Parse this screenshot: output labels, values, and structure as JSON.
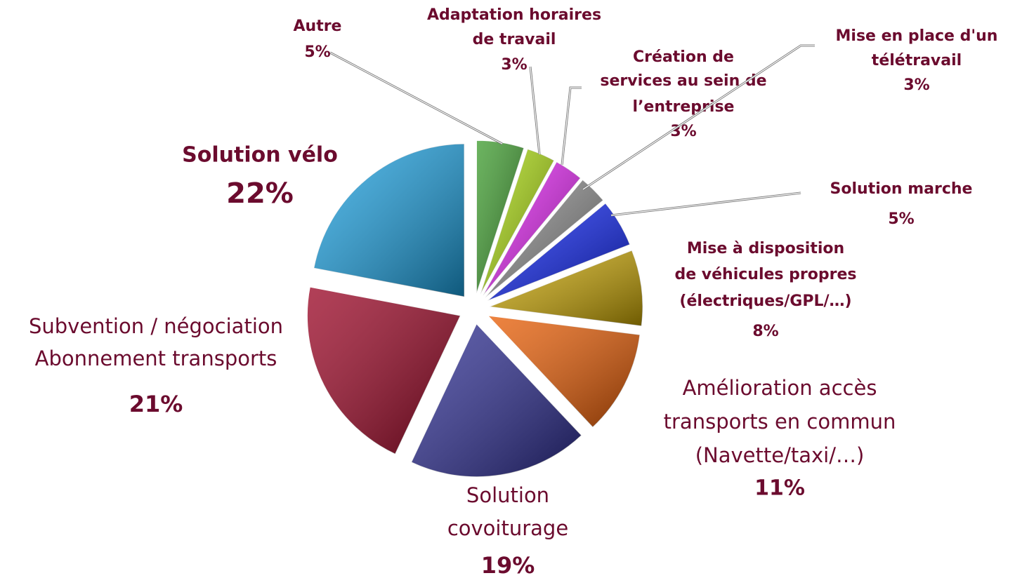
{
  "chart_data": {
    "type": "pie",
    "categories": [
      [
        "Autre"
      ],
      [
        "Adaptation horaires",
        "de travail"
      ],
      [
        "Création de",
        "services au sein de",
        "l’entreprise"
      ],
      [
        "Mise en place d'un",
        "télétravail"
      ],
      [
        "Solution marche"
      ],
      [
        "Mise à disposition",
        "de véhicules propres",
        "(électriques/GPL/…)"
      ],
      [
        "Amélioration accès",
        "transports en commun",
        "(Navette/taxi/…)"
      ],
      [
        "Solution",
        "covoiturage"
      ],
      [
        "Subvention / négociation",
        "Abonnement transports"
      ],
      [
        "Solution vélo"
      ]
    ],
    "values": [
      5,
      3,
      3,
      3,
      5,
      8,
      11,
      19,
      21,
      22
    ],
    "value_labels": [
      "5%",
      "3%",
      "3%",
      "3%",
      "5%",
      "8%",
      "11%",
      "19%",
      "21%",
      "22%"
    ],
    "colors": [
      "#3a9a2a",
      "#a8d80a",
      "#e020f0",
      "#8a8a8a",
      "#0a20f0",
      "#c8a400",
      "#e85a00",
      "#2a2a90",
      "#980020",
      "#1aa0e0"
    ]
  }
}
